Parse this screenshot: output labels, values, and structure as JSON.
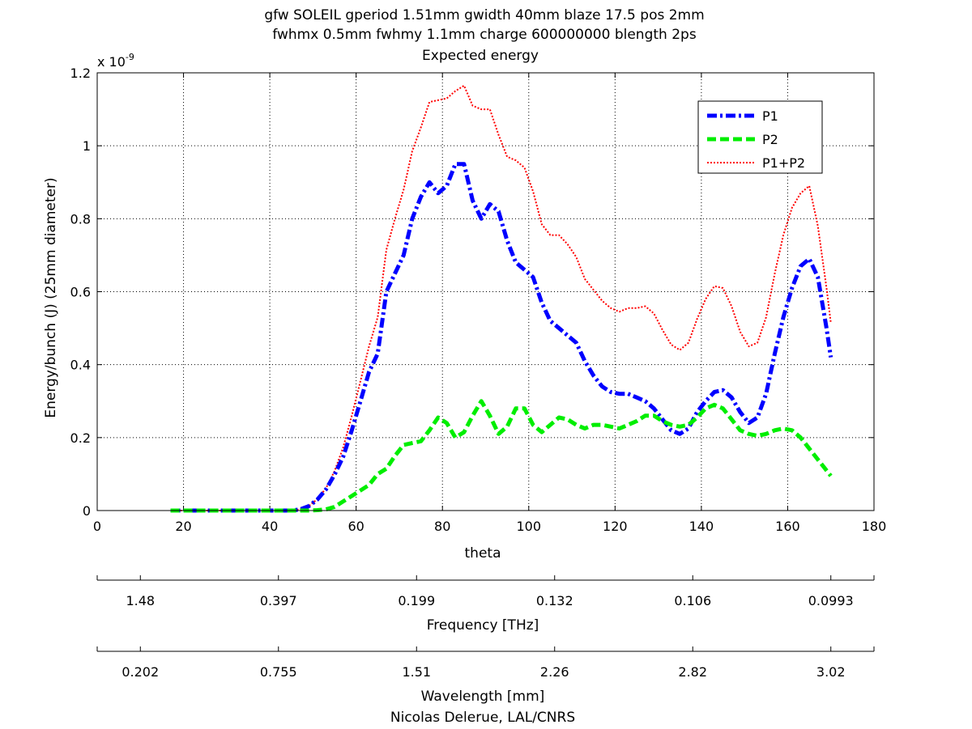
{
  "figure": {
    "title_lines": [
      "gfw SOLEIL gperiod 1.51mm gwidth 40mm blaze 17.5 pos 2mm",
      "fwhmx 0.5mm fwhmy 1.1mm charge 600000000 blength 2ps",
      "Expected energy"
    ],
    "credit": "Nicolas Delerue, LAL/CNRS"
  },
  "chart_data": {
    "type": "line",
    "xlabel": "theta",
    "ylabel": "Energy/bunch (J) (25mm diameter)",
    "y_exponent_label": "x 10",
    "y_exponent_power": "-9",
    "xlim": [
      0,
      180
    ],
    "ylim": [
      0,
      1.2
    ],
    "grid": true,
    "legend_position": "top-right",
    "x_ticks": [
      0,
      20,
      40,
      60,
      80,
      100,
      120,
      140,
      160,
      180
    ],
    "x_tick_labels": [
      "0",
      "20",
      "40",
      "60",
      "80",
      "100",
      "120",
      "140",
      "160",
      "180"
    ],
    "y_ticks": [
      0,
      0.2,
      0.4,
      0.6,
      0.8,
      1,
      1.2
    ],
    "y_tick_labels": [
      "0",
      "0.2",
      "0.4",
      "0.6",
      "0.8",
      "1",
      "1.2"
    ],
    "x": [
      17,
      20,
      25,
      30,
      35,
      40,
      45,
      47,
      49,
      51,
      53,
      55,
      57,
      59,
      61,
      63,
      65,
      67,
      69,
      71,
      73,
      75,
      77,
      79,
      81,
      83,
      85,
      87,
      89,
      91,
      93,
      95,
      97,
      99,
      101,
      103,
      105,
      107,
      109,
      111,
      113,
      115,
      117,
      119,
      121,
      123,
      125,
      127,
      129,
      131,
      133,
      135,
      137,
      139,
      141,
      143,
      145,
      147,
      149,
      151,
      153,
      155,
      157,
      159,
      161,
      163,
      165,
      167,
      169,
      170
    ],
    "series": [
      {
        "name": "P1",
        "color": "#0000ff",
        "style": "dashdot",
        "values": [
          0,
          0,
          0,
          0,
          0,
          0,
          0,
          0.003,
          0.012,
          0.03,
          0.058,
          0.098,
          0.148,
          0.22,
          0.3,
          0.38,
          0.43,
          0.6,
          0.65,
          0.7,
          0.8,
          0.86,
          0.9,
          0.87,
          0.89,
          0.95,
          0.95,
          0.85,
          0.8,
          0.84,
          0.82,
          0.74,
          0.68,
          0.66,
          0.64,
          0.57,
          0.52,
          0.5,
          0.48,
          0.46,
          0.41,
          0.37,
          0.34,
          0.325,
          0.32,
          0.32,
          0.31,
          0.3,
          0.28,
          0.25,
          0.22,
          0.21,
          0.225,
          0.27,
          0.3,
          0.325,
          0.33,
          0.31,
          0.27,
          0.24,
          0.255,
          0.32,
          0.43,
          0.53,
          0.61,
          0.67,
          0.69,
          0.64,
          0.5,
          0.42
        ]
      },
      {
        "name": "P2",
        "color": "#00ee00",
        "style": "dashed",
        "values": [
          0,
          0,
          0,
          0,
          0,
          0,
          0,
          0,
          0,
          0.001,
          0.003,
          0.01,
          0.025,
          0.04,
          0.055,
          0.07,
          0.1,
          0.115,
          0.15,
          0.18,
          0.185,
          0.19,
          0.22,
          0.255,
          0.24,
          0.2,
          0.215,
          0.26,
          0.3,
          0.26,
          0.21,
          0.23,
          0.28,
          0.28,
          0.235,
          0.215,
          0.235,
          0.255,
          0.25,
          0.235,
          0.225,
          0.235,
          0.235,
          0.23,
          0.225,
          0.235,
          0.245,
          0.26,
          0.26,
          0.245,
          0.235,
          0.23,
          0.235,
          0.255,
          0.28,
          0.29,
          0.28,
          0.25,
          0.22,
          0.21,
          0.205,
          0.21,
          0.22,
          0.225,
          0.22,
          0.2,
          0.17,
          0.14,
          0.11,
          0.095
        ]
      },
      {
        "name": "P1+P2",
        "color": "#ff0000",
        "style": "dotted",
        "values": [
          0,
          0,
          0,
          0,
          0,
          0,
          0,
          0.003,
          0.012,
          0.031,
          0.061,
          0.108,
          0.173,
          0.26,
          0.355,
          0.45,
          0.53,
          0.715,
          0.8,
          0.88,
          0.985,
          1.05,
          1.12,
          1.125,
          1.13,
          1.15,
          1.165,
          1.11,
          1.1,
          1.1,
          1.03,
          0.97,
          0.96,
          0.94,
          0.875,
          0.785,
          0.755,
          0.755,
          0.73,
          0.695,
          0.635,
          0.605,
          0.575,
          0.555,
          0.545,
          0.555,
          0.555,
          0.56,
          0.54,
          0.495,
          0.455,
          0.44,
          0.46,
          0.525,
          0.58,
          0.615,
          0.61,
          0.56,
          0.49,
          0.45,
          0.46,
          0.53,
          0.65,
          0.755,
          0.83,
          0.87,
          0.89,
          0.78,
          0.61,
          0.515
        ]
      }
    ],
    "secondary_axes": [
      {
        "label": "Frequency [THz]",
        "tick_labels": [
          "1.48",
          "0.397",
          "0.199",
          "0.132",
          "0.106",
          "0.0993"
        ]
      },
      {
        "label": "Wavelength [mm]",
        "tick_labels": [
          "0.202",
          "0.755",
          "1.51",
          "2.26",
          "2.82",
          "3.02"
        ]
      }
    ]
  }
}
